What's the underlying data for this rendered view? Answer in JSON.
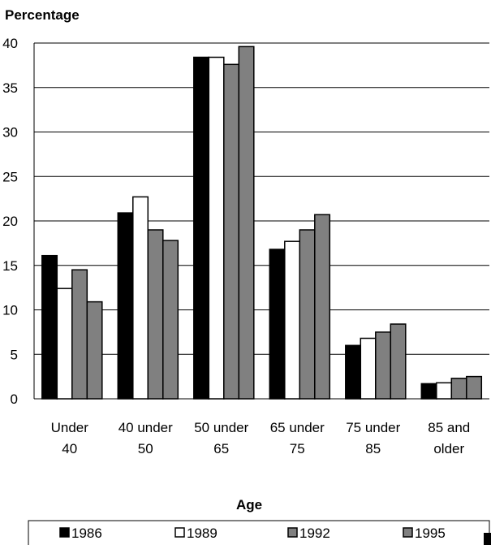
{
  "chart_data": {
    "type": "bar",
    "ylabel": "Percentage",
    "xlabel": "Age",
    "ylim": [
      0,
      40
    ],
    "yticks": [
      0,
      5,
      10,
      15,
      20,
      25,
      30,
      35,
      40
    ],
    "grid": true,
    "legend_position": "bottom",
    "categories": [
      [
        "Under",
        "40"
      ],
      [
        "40 under",
        "50"
      ],
      [
        "50 under",
        "65"
      ],
      [
        "65 under",
        "75"
      ],
      [
        "75 under",
        "85"
      ],
      [
        "85 and",
        "older"
      ]
    ],
    "series": [
      {
        "name": "1986",
        "color": "#000000",
        "values": [
          16.1,
          20.9,
          38.4,
          16.8,
          6.0,
          1.7
        ]
      },
      {
        "name": "1989",
        "color": "#ffffff",
        "values": [
          12.4,
          22.7,
          38.4,
          17.7,
          6.8,
          1.8
        ]
      },
      {
        "name": "1992",
        "color": "#808080",
        "values": [
          14.5,
          19.0,
          37.6,
          19.0,
          7.5,
          2.3
        ]
      },
      {
        "name": "1995",
        "color": "#808080",
        "values": [
          10.9,
          17.8,
          39.6,
          20.7,
          8.4,
          2.5
        ]
      }
    ]
  }
}
